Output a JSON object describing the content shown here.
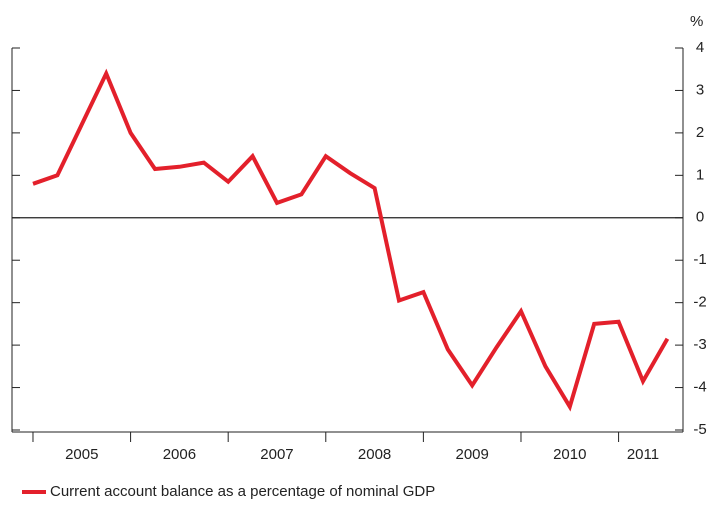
{
  "chart_data": {
    "type": "line",
    "y_unit": "%",
    "x": [
      2005.0,
      2005.25,
      2005.5,
      2005.75,
      2006.0,
      2006.25,
      2006.5,
      2006.75,
      2007.0,
      2007.25,
      2007.5,
      2007.75,
      2008.0,
      2008.25,
      2008.5,
      2008.75,
      2009.0,
      2009.25,
      2009.5,
      2009.75,
      2010.0,
      2010.25,
      2010.5,
      2010.75,
      2011.0,
      2011.25,
      2011.5
    ],
    "series": [
      {
        "name": "Current account balance as a percentage of nominal GDP",
        "color": "#e3202b",
        "values": [
          0.8,
          1.0,
          2.2,
          3.4,
          2.0,
          1.15,
          1.2,
          1.3,
          0.85,
          1.45,
          0.35,
          0.55,
          1.45,
          1.05,
          0.7,
          -1.95,
          -1.75,
          -3.1,
          -3.95,
          -3.05,
          -2.2,
          -3.5,
          -4.45,
          -2.5,
          -2.45,
          -3.85,
          -2.85
        ]
      }
    ],
    "xlim": [
      2004.785,
      2011.66
    ],
    "xticks": [
      {
        "value": 2005.5,
        "label": "2005"
      },
      {
        "value": 2006.5,
        "label": "2006"
      },
      {
        "value": 2007.5,
        "label": "2007"
      },
      {
        "value": 2008.5,
        "label": "2008"
      },
      {
        "value": 2009.5,
        "label": "2009"
      },
      {
        "value": 2010.5,
        "label": "2010"
      },
      {
        "value": 2011.25,
        "label": "2011"
      }
    ],
    "year_boundaries": [
      2005,
      2006,
      2007,
      2008,
      2009,
      2010,
      2011
    ],
    "ylim": [
      -5,
      4
    ],
    "yticks": [
      -5,
      -4,
      -3,
      -2,
      -1,
      0,
      1,
      2,
      3,
      4
    ]
  }
}
